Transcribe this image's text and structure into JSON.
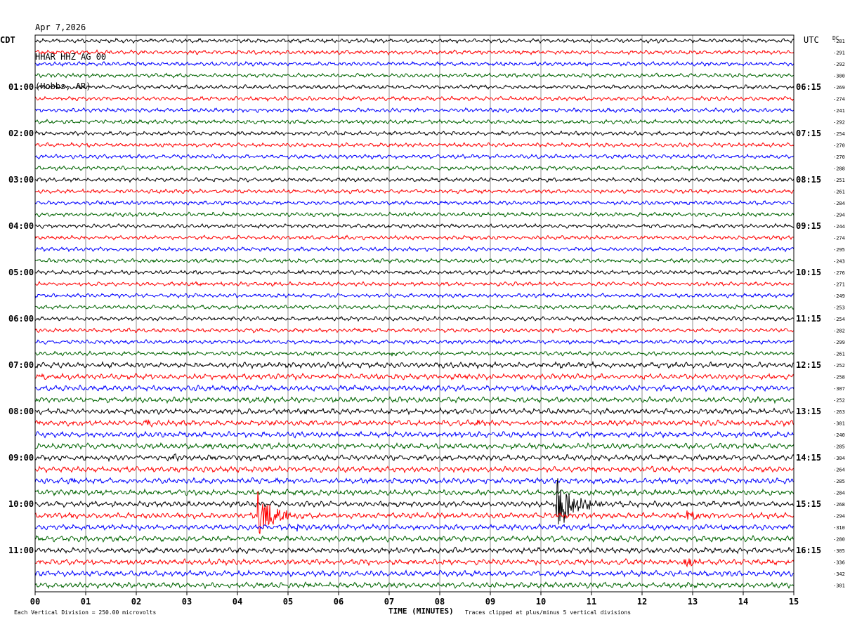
{
  "header": {
    "date": "Apr 7,2026",
    "station": "HHAR HHZ AG 00",
    "location": "(Hobbs, AR)"
  },
  "left_tz": "CDT",
  "right_tz": "UTC",
  "dc_label": "DC",
  "footer": {
    "scale_text": "Each Vertical Division =  250.00 microvolts",
    "clip_text": "Traces clipped at plus/minus 5 vertical divisions"
  },
  "chart_data": {
    "type": "line",
    "title": "HHAR HHZ AG 00",
    "xlabel": "TIME (MINUTES)",
    "xlim": [
      0,
      15
    ],
    "x_ticks": [
      "00",
      "01",
      "02",
      "03",
      "04",
      "05",
      "06",
      "07",
      "08",
      "09",
      "10",
      "11",
      "12",
      "13",
      "14",
      "15"
    ],
    "trace_colors": [
      "#000000",
      "#ff0000",
      "#0000ff",
      "#006400"
    ],
    "left_hour_labels": [
      "01:00",
      "02:00",
      "03:00",
      "04:00",
      "05:00",
      "06:00",
      "07:00",
      "08:00",
      "09:00",
      "10:00",
      "11:00"
    ],
    "right_hour_labels": [
      "06:15",
      "07:15",
      "08:15",
      "09:15",
      "10:15",
      "11:15",
      "12:15",
      "13:15",
      "14:15",
      "15:15",
      "16:15"
    ],
    "dc_offsets": [
      "-281",
      "-291",
      "-292",
      "-300",
      "-269",
      "-274",
      "-241",
      "-292",
      "-254",
      "-270",
      "-270",
      "-288",
      "-251",
      "-261",
      "-284",
      "-294",
      "-244",
      "-274",
      "-295",
      "-243",
      "-276",
      "-271",
      "-249",
      "-253",
      "-254",
      "-282",
      "-299",
      "-261",
      "-252",
      "-258",
      "-307",
      "-252",
      "-263",
      "-301",
      "-240",
      "-285",
      "-304",
      "-264",
      "-285",
      "-284",
      "-268",
      "-294",
      "-310",
      "-280",
      "-305",
      "-336",
      "-342",
      "-301"
    ],
    "events": [
      {
        "trace": 21,
        "minute": 3.2,
        "amplitude": "small"
      },
      {
        "trace": 27,
        "minute": 7.0,
        "amplitude": "small"
      },
      {
        "trace": 28,
        "minute": 10.3,
        "amplitude": "small"
      },
      {
        "trace": 33,
        "minute": 2.2,
        "amplitude": "small"
      },
      {
        "trace": 33,
        "minute": 8.7,
        "amplitude": "small"
      },
      {
        "trace": 34,
        "minute": 8.3,
        "amplitude": "small"
      },
      {
        "trace": 36,
        "minute": 2.7,
        "amplitude": "small"
      },
      {
        "trace": 37,
        "minute": 12.2,
        "amplitude": "small"
      },
      {
        "trace": 38,
        "minute": 0.7,
        "amplitude": "small"
      },
      {
        "trace": 40,
        "minute": 10.32,
        "amplitude": "large"
      },
      {
        "trace": 41,
        "minute": 4.42,
        "amplitude": "large"
      },
      {
        "trace": 41,
        "minute": 12.9,
        "amplitude": "medium"
      },
      {
        "trace": 42,
        "minute": 5.2,
        "amplitude": "small"
      },
      {
        "trace": 44,
        "minute": 6.0,
        "amplitude": "small"
      },
      {
        "trace": 45,
        "minute": 12.85,
        "amplitude": "medium"
      }
    ]
  }
}
